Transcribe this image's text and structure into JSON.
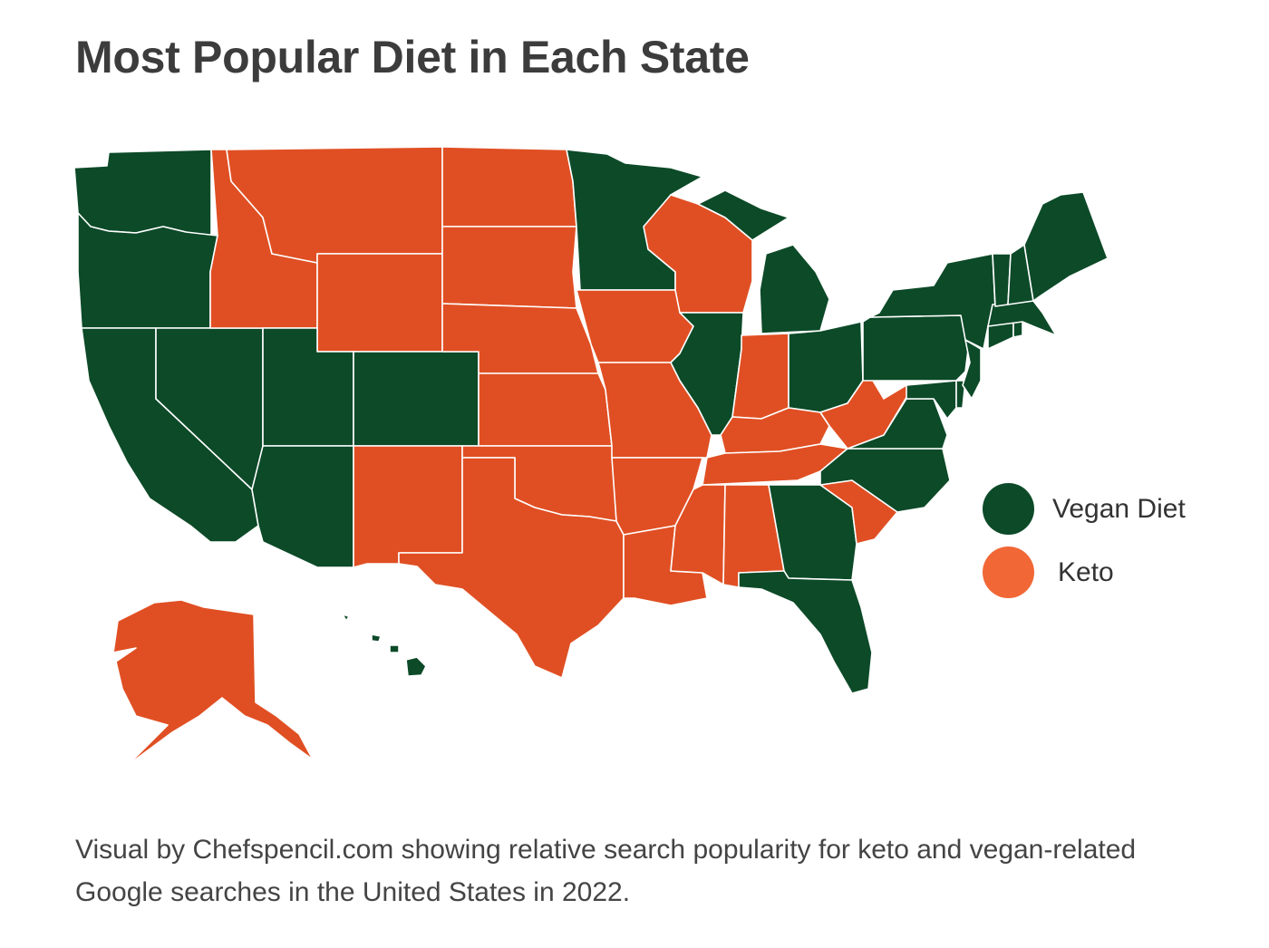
{
  "title": "Most Popular Diet in Each State",
  "legend": [
    {
      "label": "Vegan Diet",
      "color": "#0c4a28"
    },
    {
      "label": "Keto",
      "color": "#f16736"
    }
  ],
  "colors": {
    "vegan": "#0c4a28",
    "keto": "#e04f23",
    "border": "#ffffff"
  },
  "states": {
    "WA": "vegan",
    "OR": "vegan",
    "CA": "vegan",
    "NV": "vegan",
    "UT": "vegan",
    "AZ": "vegan",
    "CO": "vegan",
    "MN": "vegan",
    "MI": "vegan",
    "IL": "vegan",
    "OH": "vegan",
    "PA": "vegan",
    "NY": "vegan",
    "VT": "vegan",
    "NH": "vegan",
    "ME": "vegan",
    "MA": "vegan",
    "CT": "vegan",
    "RI": "vegan",
    "NJ": "vegan",
    "DE": "vegan",
    "MD": "vegan",
    "VA": "vegan",
    "NC": "vegan",
    "GA": "vegan",
    "FL": "vegan",
    "HI": "vegan",
    "ID": "keto",
    "MT": "keto",
    "WY": "keto",
    "ND": "keto",
    "SD": "keto",
    "NE": "keto",
    "KS": "keto",
    "OK": "keto",
    "TX": "keto",
    "NM": "keto",
    "IA": "keto",
    "MO": "keto",
    "AR": "keto",
    "LA": "keto",
    "WI": "keto",
    "IN": "keto",
    "KY": "keto",
    "TN": "keto",
    "MS": "keto",
    "AL": "keto",
    "SC": "keto",
    "WV": "keto",
    "AK": "keto"
  },
  "caption": "Visual by Chefspencil.com showing relative search popularity for keto and vegan-related Google searches in the United States in 2022."
}
